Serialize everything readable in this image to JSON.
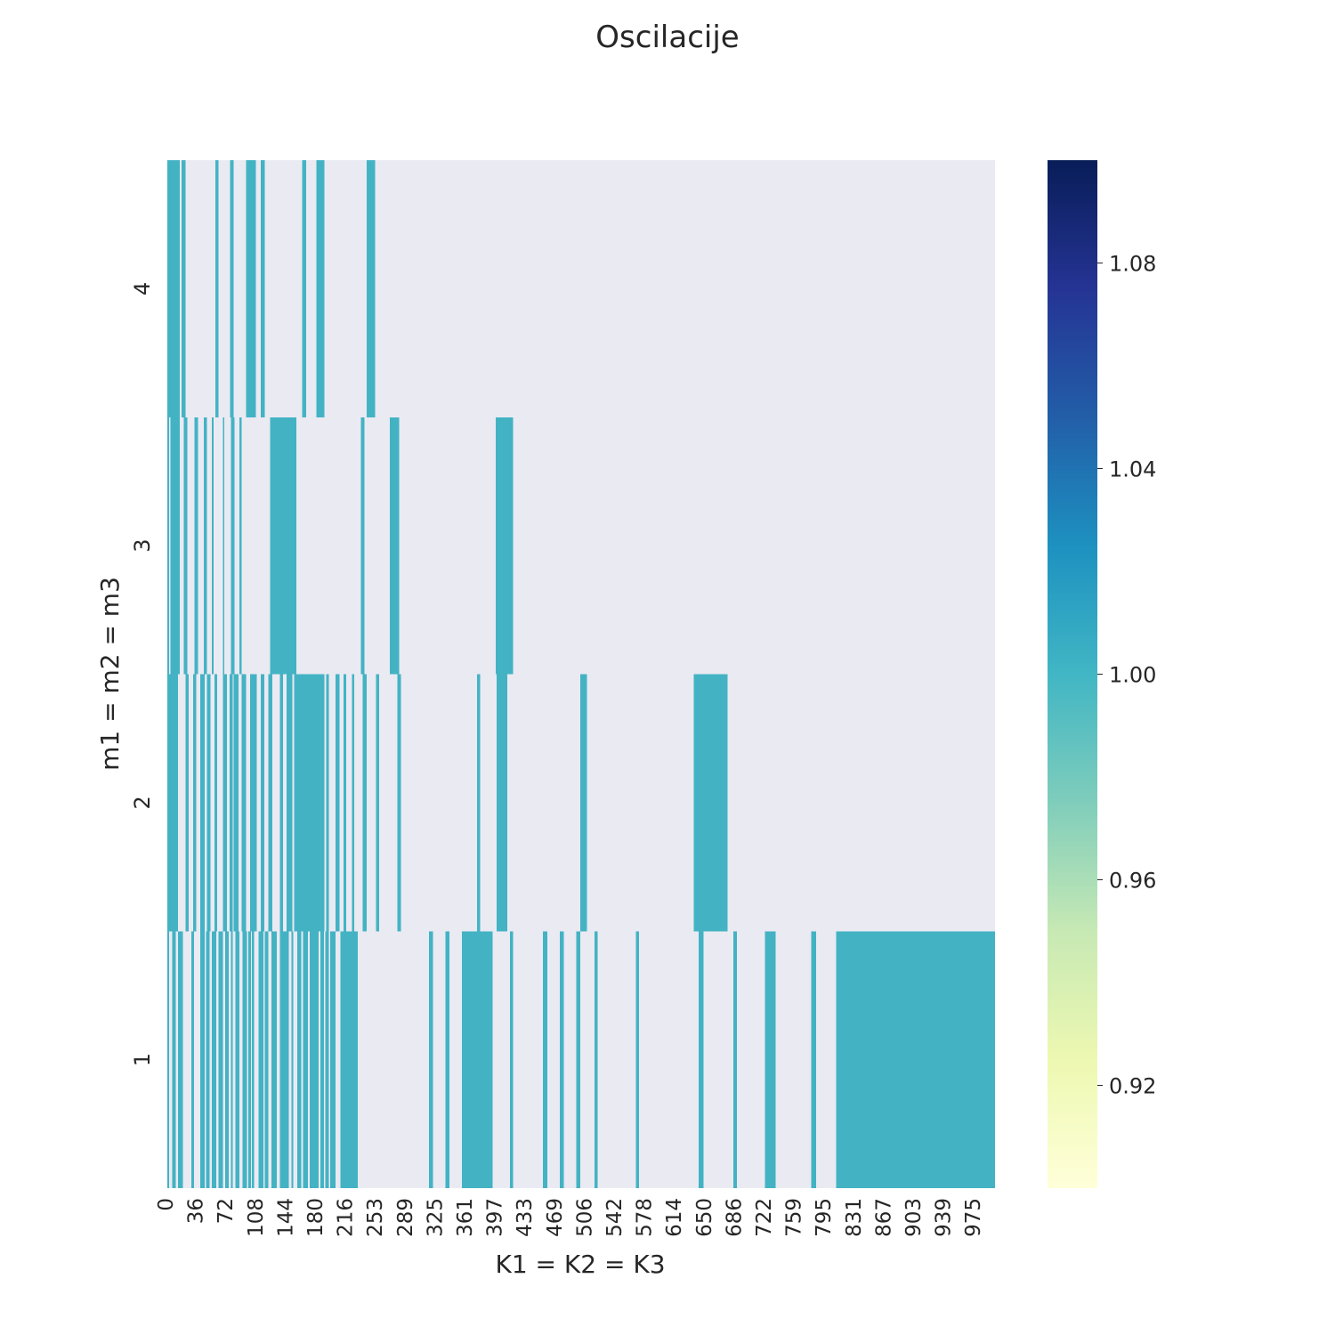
{
  "chart_data": {
    "type": "heatmap",
    "title": "Oscilacije",
    "xlabel": "K1 = K2 = K3",
    "ylabel": "m1 = m2 = m3",
    "x_range": [
      0,
      1000
    ],
    "x_ticks": [
      "0",
      "36",
      "72",
      "108",
      "144",
      "180",
      "216",
      "253",
      "289",
      "325",
      "361",
      "397",
      "433",
      "469",
      "506",
      "542",
      "578",
      "614",
      "650",
      "686",
      "722",
      "759",
      "795",
      "831",
      "867",
      "903",
      "939",
      "975"
    ],
    "y_ticks": [
      "1",
      "2",
      "3",
      "4"
    ],
    "background_color": "#eaeaf2",
    "cell_color": "#43b3c4",
    "cell_value": 1.0,
    "colorbar": {
      "colormap": "YlGnBu",
      "range": [
        0.9,
        1.1
      ],
      "ticks": [
        "0.92",
        "0.96",
        "1.00",
        "1.04",
        "1.08"
      ],
      "tick_values": [
        0.92,
        0.96,
        1.0,
        1.04,
        1.08
      ]
    },
    "rows": [
      {
        "y": "1",
        "intervals": [
          [
            0,
            2
          ],
          [
            6,
            10
          ],
          [
            13,
            19
          ],
          [
            29,
            32
          ],
          [
            40,
            45
          ],
          [
            47,
            51
          ],
          [
            54,
            59
          ],
          [
            62,
            67
          ],
          [
            70,
            74
          ],
          [
            77,
            79
          ],
          [
            82,
            87
          ],
          [
            91,
            96
          ],
          [
            98,
            101
          ],
          [
            102,
            105
          ],
          [
            110,
            116
          ],
          [
            118,
            122
          ],
          [
            126,
            132
          ],
          [
            136,
            141
          ],
          [
            141,
            147
          ],
          [
            150,
            152
          ],
          [
            157,
            162
          ],
          [
            164,
            170
          ],
          [
            172,
            178
          ],
          [
            178,
            183
          ],
          [
            185,
            189
          ],
          [
            191,
            195
          ],
          [
            197,
            203
          ],
          [
            209,
            214
          ],
          [
            214,
            218
          ],
          [
            218,
            230
          ],
          [
            316,
            321
          ],
          [
            336,
            341
          ],
          [
            356,
            393
          ],
          [
            414,
            418
          ],
          [
            454,
            459
          ],
          [
            474,
            479
          ],
          [
            494,
            499
          ],
          [
            516,
            520
          ],
          [
            566,
            570
          ],
          [
            642,
            648
          ],
          [
            684,
            688
          ],
          [
            722,
            735
          ],
          [
            778,
            784
          ],
          [
            808,
            1000
          ]
        ]
      },
      {
        "y": "2",
        "intervals": [
          [
            0,
            13
          ],
          [
            22,
            26
          ],
          [
            31,
            35
          ],
          [
            40,
            45
          ],
          [
            48,
            52
          ],
          [
            57,
            60
          ],
          [
            67,
            72
          ],
          [
            75,
            79
          ],
          [
            80,
            86
          ],
          [
            90,
            95
          ],
          [
            100,
            108
          ],
          [
            113,
            117
          ],
          [
            122,
            127
          ],
          [
            136,
            140
          ],
          [
            144,
            151
          ],
          [
            153,
            160
          ],
          [
            159,
            164
          ],
          [
            164,
            174
          ],
          [
            174,
            186
          ],
          [
            186,
            190
          ],
          [
            192,
            195
          ],
          [
            203,
            208
          ],
          [
            213,
            216
          ],
          [
            223,
            226
          ],
          [
            236,
            241
          ],
          [
            252,
            256
          ],
          [
            278,
            282
          ],
          [
            374,
            378
          ],
          [
            398,
            411
          ],
          [
            499,
            507
          ],
          [
            636,
            677
          ]
        ]
      },
      {
        "y": "3",
        "intervals": [
          [
            0,
            2
          ],
          [
            4,
            15
          ],
          [
            20,
            24
          ],
          [
            33,
            37
          ],
          [
            44,
            48
          ],
          [
            54,
            56
          ],
          [
            67,
            69
          ],
          [
            77,
            81
          ],
          [
            87,
            90
          ],
          [
            124,
            156
          ],
          [
            234,
            238
          ],
          [
            269,
            280
          ],
          [
            397,
            418
          ]
        ]
      },
      {
        "y": "4",
        "intervals": [
          [
            0,
            15
          ],
          [
            17,
            22
          ],
          [
            58,
            62
          ],
          [
            76,
            80
          ],
          [
            95,
            107
          ],
          [
            113,
            118
          ],
          [
            163,
            168
          ],
          [
            180,
            190
          ],
          [
            241,
            251
          ]
        ]
      }
    ]
  }
}
